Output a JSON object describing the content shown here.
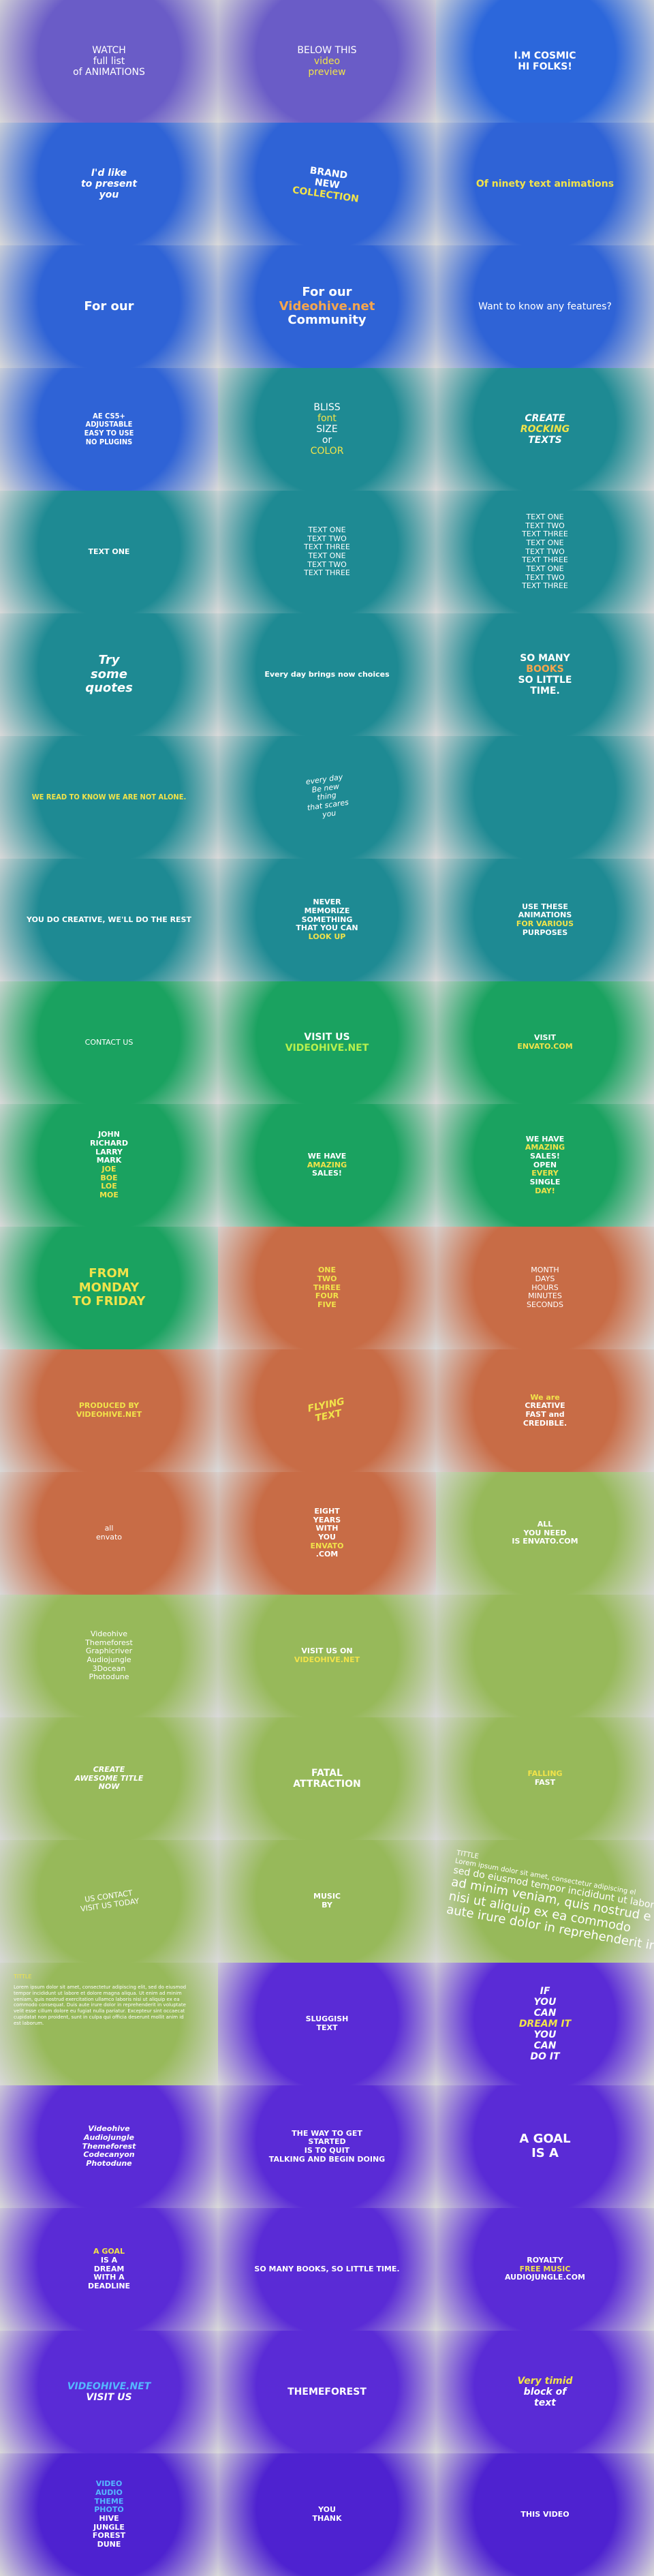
{
  "cells": [
    {
      "lines": [
        "WATCH",
        "full list",
        "of ANIMATIONS"
      ]
    },
    {
      "lines": [
        "BELOW THIS",
        "video",
        "preview"
      ]
    },
    {
      "lines": [
        "I.M COSMIC",
        "HI FOLKS!"
      ]
    },
    {
      "lines": [
        "I'd like",
        "to present",
        "you"
      ]
    },
    {
      "lines": [
        "BRAND",
        "NEW",
        "COLLECTION"
      ]
    },
    {
      "lines": [
        "Of ninety text animations"
      ]
    },
    {
      "lines": [
        "For our"
      ]
    },
    {
      "lines": [
        "For our",
        "Videohive.net",
        "Community"
      ]
    },
    {
      "lines": [
        "Want to know any features?"
      ]
    },
    {
      "lines": [
        "AE CS5+",
        "ADJUSTABLE",
        "EASY TO USE",
        "NO PLUGINS"
      ]
    },
    {
      "lines": [
        "BLISS",
        "font",
        "SIZE",
        "or",
        "COLOR"
      ]
    },
    {
      "lines": [
        "CREATE",
        "ROCKING",
        "TEXTS"
      ]
    },
    {
      "lines": [
        "TEXT ONE"
      ]
    },
    {
      "lines": [
        "TEXT ONE",
        "TEXT TWO",
        "TEXT THREE",
        "TEXT ONE",
        "TEXT TWO",
        "TEXT THREE"
      ]
    },
    {
      "lines": [
        "TEXT ONE",
        "TEXT TWO",
        "TEXT THREE",
        "TEXT ONE",
        "TEXT TWO",
        "TEXT THREE",
        "TEXT ONE",
        "TEXT TWO",
        "TEXT THREE"
      ]
    },
    {
      "lines": [
        "Try",
        "some",
        "quotes"
      ]
    },
    {
      "lines": [
        "Every day brings now choices"
      ]
    },
    {
      "lines": [
        "SO MANY",
        "BOOKS",
        "SO LITTLE",
        "TIME."
      ]
    },
    {
      "lines": [
        "WE READ TO KNOW WE ARE NOT ALONE."
      ]
    },
    {
      "lines": [
        "every day",
        "Be new",
        "thing",
        "that scares",
        "you"
      ]
    },
    {
      "lines": []
    },
    {
      "lines": [
        "YOU DO CREATIVE, WE'LL DO THE REST"
      ]
    },
    {
      "lines": [
        "NEVER",
        "MEMORIZE",
        "SOMETHING",
        "THAT YOU CAN",
        "LOOK UP"
      ]
    },
    {
      "lines": [
        "USE THESE",
        "ANIMATIONS",
        "FOR VARIOUS",
        "PURPOSES"
      ]
    },
    {
      "lines": [
        "CONTACT US"
      ]
    },
    {
      "lines": [
        "VISIT US",
        "VIDEOHIVE.NET"
      ]
    },
    {
      "lines": [
        "VISIT",
        "ENVATO.COM"
      ]
    },
    {
      "lines": [
        "JOHN",
        "RICHARD",
        "LARRY",
        "MARK",
        "JOE",
        "BOE",
        "LOE",
        "MOE"
      ]
    },
    {
      "lines": [
        "WE HAVE",
        "AMAZING",
        "SALES!"
      ]
    },
    {
      "lines": [
        "WE HAVE",
        "AMAZING",
        "SALES!",
        "OPEN",
        "EVERY",
        "SINGLE",
        "DAY!"
      ]
    },
    {
      "lines": [
        "FROM",
        "MONDAY",
        "TO FRIDAY"
      ]
    },
    {
      "lines": [
        "ONE",
        "TWO",
        "THREE",
        "FOUR",
        "FIVE"
      ]
    },
    {
      "lines": [
        "MONTH",
        "DAYS",
        "HOURS",
        "MINUTES",
        "SECONDS"
      ]
    },
    {
      "lines": [
        "PRODUCED BY",
        "VIDEOHIVE.NET"
      ]
    },
    {
      "lines": [
        "FLYING",
        "TEXT"
      ]
    },
    {
      "lines": [
        "We are",
        "CREATIVE",
        "FAST and",
        "CREDIBLE."
      ]
    },
    {
      "lines": [
        "all",
        "envato"
      ]
    },
    {
      "lines": [
        "EIGHT",
        "YEARS",
        "WITH",
        "YOU",
        "ENVATO",
        ".COM"
      ]
    },
    {
      "lines": [
        "ALL",
        "YOU NEED",
        "IS ENVATO.COM"
      ]
    },
    {
      "lines": [
        "Videohive",
        "Themeforest",
        "Graphicriver",
        "Audiojungle",
        "3Docean",
        "Photodune"
      ]
    },
    {
      "lines": [
        "VISIT US ON",
        "VIDEOHIVE.NET"
      ]
    },
    {
      "lines": []
    },
    {
      "lines": [
        "CREATE",
        "AWESOME TITLE",
        "NOW"
      ]
    },
    {
      "lines": [
        "FATAL",
        "ATTRACTION"
      ]
    },
    {
      "lines": [
        "FALLING",
        "FAST"
      ]
    },
    {
      "lines": [
        "US CONTACT",
        "VISIT US TODAY"
      ]
    },
    {
      "lines": [
        "MUSIC",
        "BY"
      ]
    },
    {
      "lines": [
        "TITTLE",
        "Lorem ipsum dolor sit amet, consectetur adipiscing el",
        "sed do eiusmod tempor incididunt ut labore et dolore",
        "ad minim veniam, quis nostrud e",
        "nisi ut aliquip ex ea commodo",
        "aute irure dolor in reprehenderit in"
      ]
    },
    {
      "lines": [
        "TITTLE",
        "Lorem ipsum dolor sit amet, consectetur adipiscing elit, sed do eiusmod tempor incididunt ut labore et dolore magna aliqua. Ut enim ad minim veniam, quis nostrud exercitation ullamco laboris nisi ut aliquip ex ea commodo consequat. Duis aute irure dolor in reprehenderit in voluptate velit esse cillum dolore eu fugiat nulla pariatur. Excepteur sint occaecat cupidatat non proident, sunt in culpa qui officia deserunt mollit anim id est laborum."
      ]
    },
    {
      "lines": [
        "SLUGGISH",
        "TEXT"
      ]
    },
    {
      "lines": [
        "IF",
        "YOU",
        "CAN",
        "DREAM IT",
        "YOU",
        "CAN",
        "DO IT"
      ]
    },
    {
      "lines": [
        "Videohive",
        "Audiojungle",
        "Themeforest",
        "Codecanyon",
        "Photodune"
      ]
    },
    {
      "lines": [
        "THE WAY TO GET",
        "STARTED",
        "IS TO QUIT",
        "TALKING AND BEGIN DOING"
      ]
    },
    {
      "lines": [
        "A GOAL",
        "IS A"
      ]
    },
    {
      "lines": [
        "A GOAL",
        "IS A",
        "DREAM",
        "WITH A",
        "DEADLINE"
      ]
    },
    {
      "lines": [
        "SO MANY BOOKS, SO LITTLE TIME."
      ]
    },
    {
      "lines": [
        "ROYALTY",
        "FREE MUSIC",
        "AUDIOJUNGLE.COM"
      ]
    },
    {
      "lines": [
        "VIDEOHIVE.NET",
        "VISIT US"
      ]
    },
    {
      "lines": [
        "THEMEFOREST"
      ]
    },
    {
      "lines": [
        "Very timid",
        "block of",
        "text"
      ]
    },
    {
      "lines": [
        "VIDEO",
        "AUDIO",
        "THEME",
        "PHOTO",
        "HIVE",
        "JUNGLE",
        "FOREST",
        "DUNE"
      ]
    },
    {
      "lines": [
        "YOU",
        "THANK"
      ]
    },
    {
      "lines": [
        "THIS VIDEO"
      ]
    }
  ],
  "palette": {
    "purple_top": "#6a5cc7",
    "blue": "#2f63d6",
    "blue2": "#2c67db",
    "teal": "#1e8a93",
    "teal2": "#1f8d8a",
    "green": "#1aa260",
    "orange": "#c86c46",
    "olive": "#97b95a",
    "violet": "#5a2bd6",
    "violet2": "#4e22d0"
  }
}
